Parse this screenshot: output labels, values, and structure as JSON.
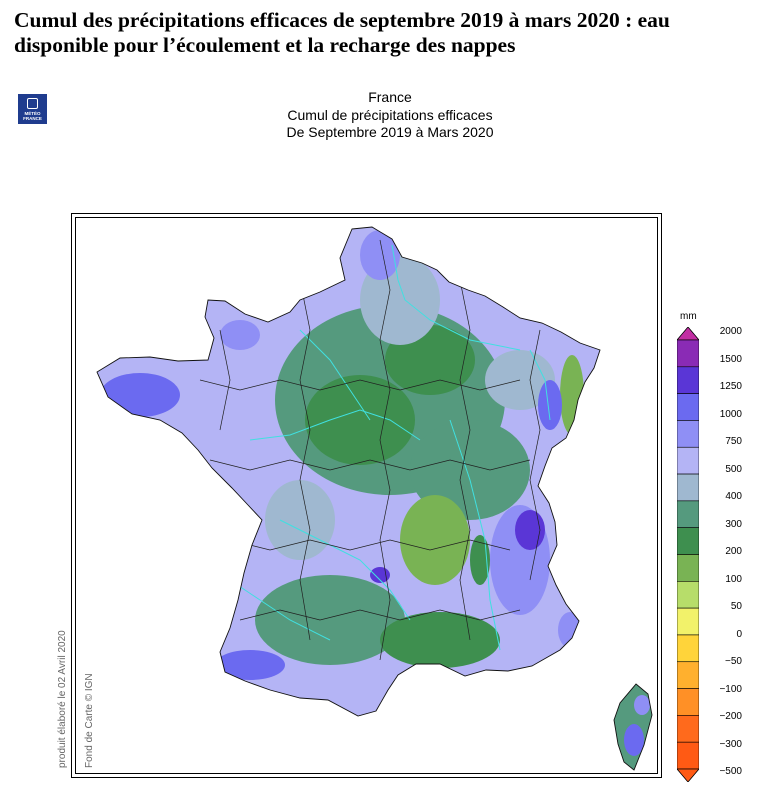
{
  "headline": "Cumul des précipitations efficaces de septembre 2019 à mars 2020 : eau disponible pour l’écoulement et la recharge des nappes",
  "logo": {
    "line1": "MÉTÉO",
    "line2": "FRANCE"
  },
  "map": {
    "titles": [
      "France",
      "Cumul de précipitations efficaces",
      "De Septembre 2019 à Mars 2020"
    ],
    "credits": {
      "produced": "produit élaboré le 02 Avril 2020",
      "basemap": "Fond de Carte © IGN"
    }
  },
  "legend": {
    "unit": "mm",
    "levels": [
      {
        "label": "2000",
        "color": "#c22ea3"
      },
      {
        "label": "1500",
        "color": "#8a2bb5"
      },
      {
        "label": "1250",
        "color": "#5a36d6"
      },
      {
        "label": "1000",
        "color": "#6b6af0"
      },
      {
        "label": "750",
        "color": "#8f8ff5"
      },
      {
        "label": "500",
        "color": "#b4b4f5"
      },
      {
        "label": "400",
        "color": "#9fb8d0"
      },
      {
        "label": "300",
        "color": "#559a7e"
      },
      {
        "label": "200",
        "color": "#3e8f4f"
      },
      {
        "label": "100",
        "color": "#79b354"
      },
      {
        "label": "50",
        "color": "#b7dd6a"
      },
      {
        "label": "0",
        "color": "#f2f26a"
      },
      {
        "label": "−50",
        "color": "#ffd43a"
      },
      {
        "label": "−100",
        "color": "#ffb02e"
      },
      {
        "label": "−200",
        "color": "#ff9026"
      },
      {
        "label": "−300",
        "color": "#ff6a1c"
      },
      {
        "label": "−500",
        "color": "#ff5a14"
      }
    ]
  }
}
